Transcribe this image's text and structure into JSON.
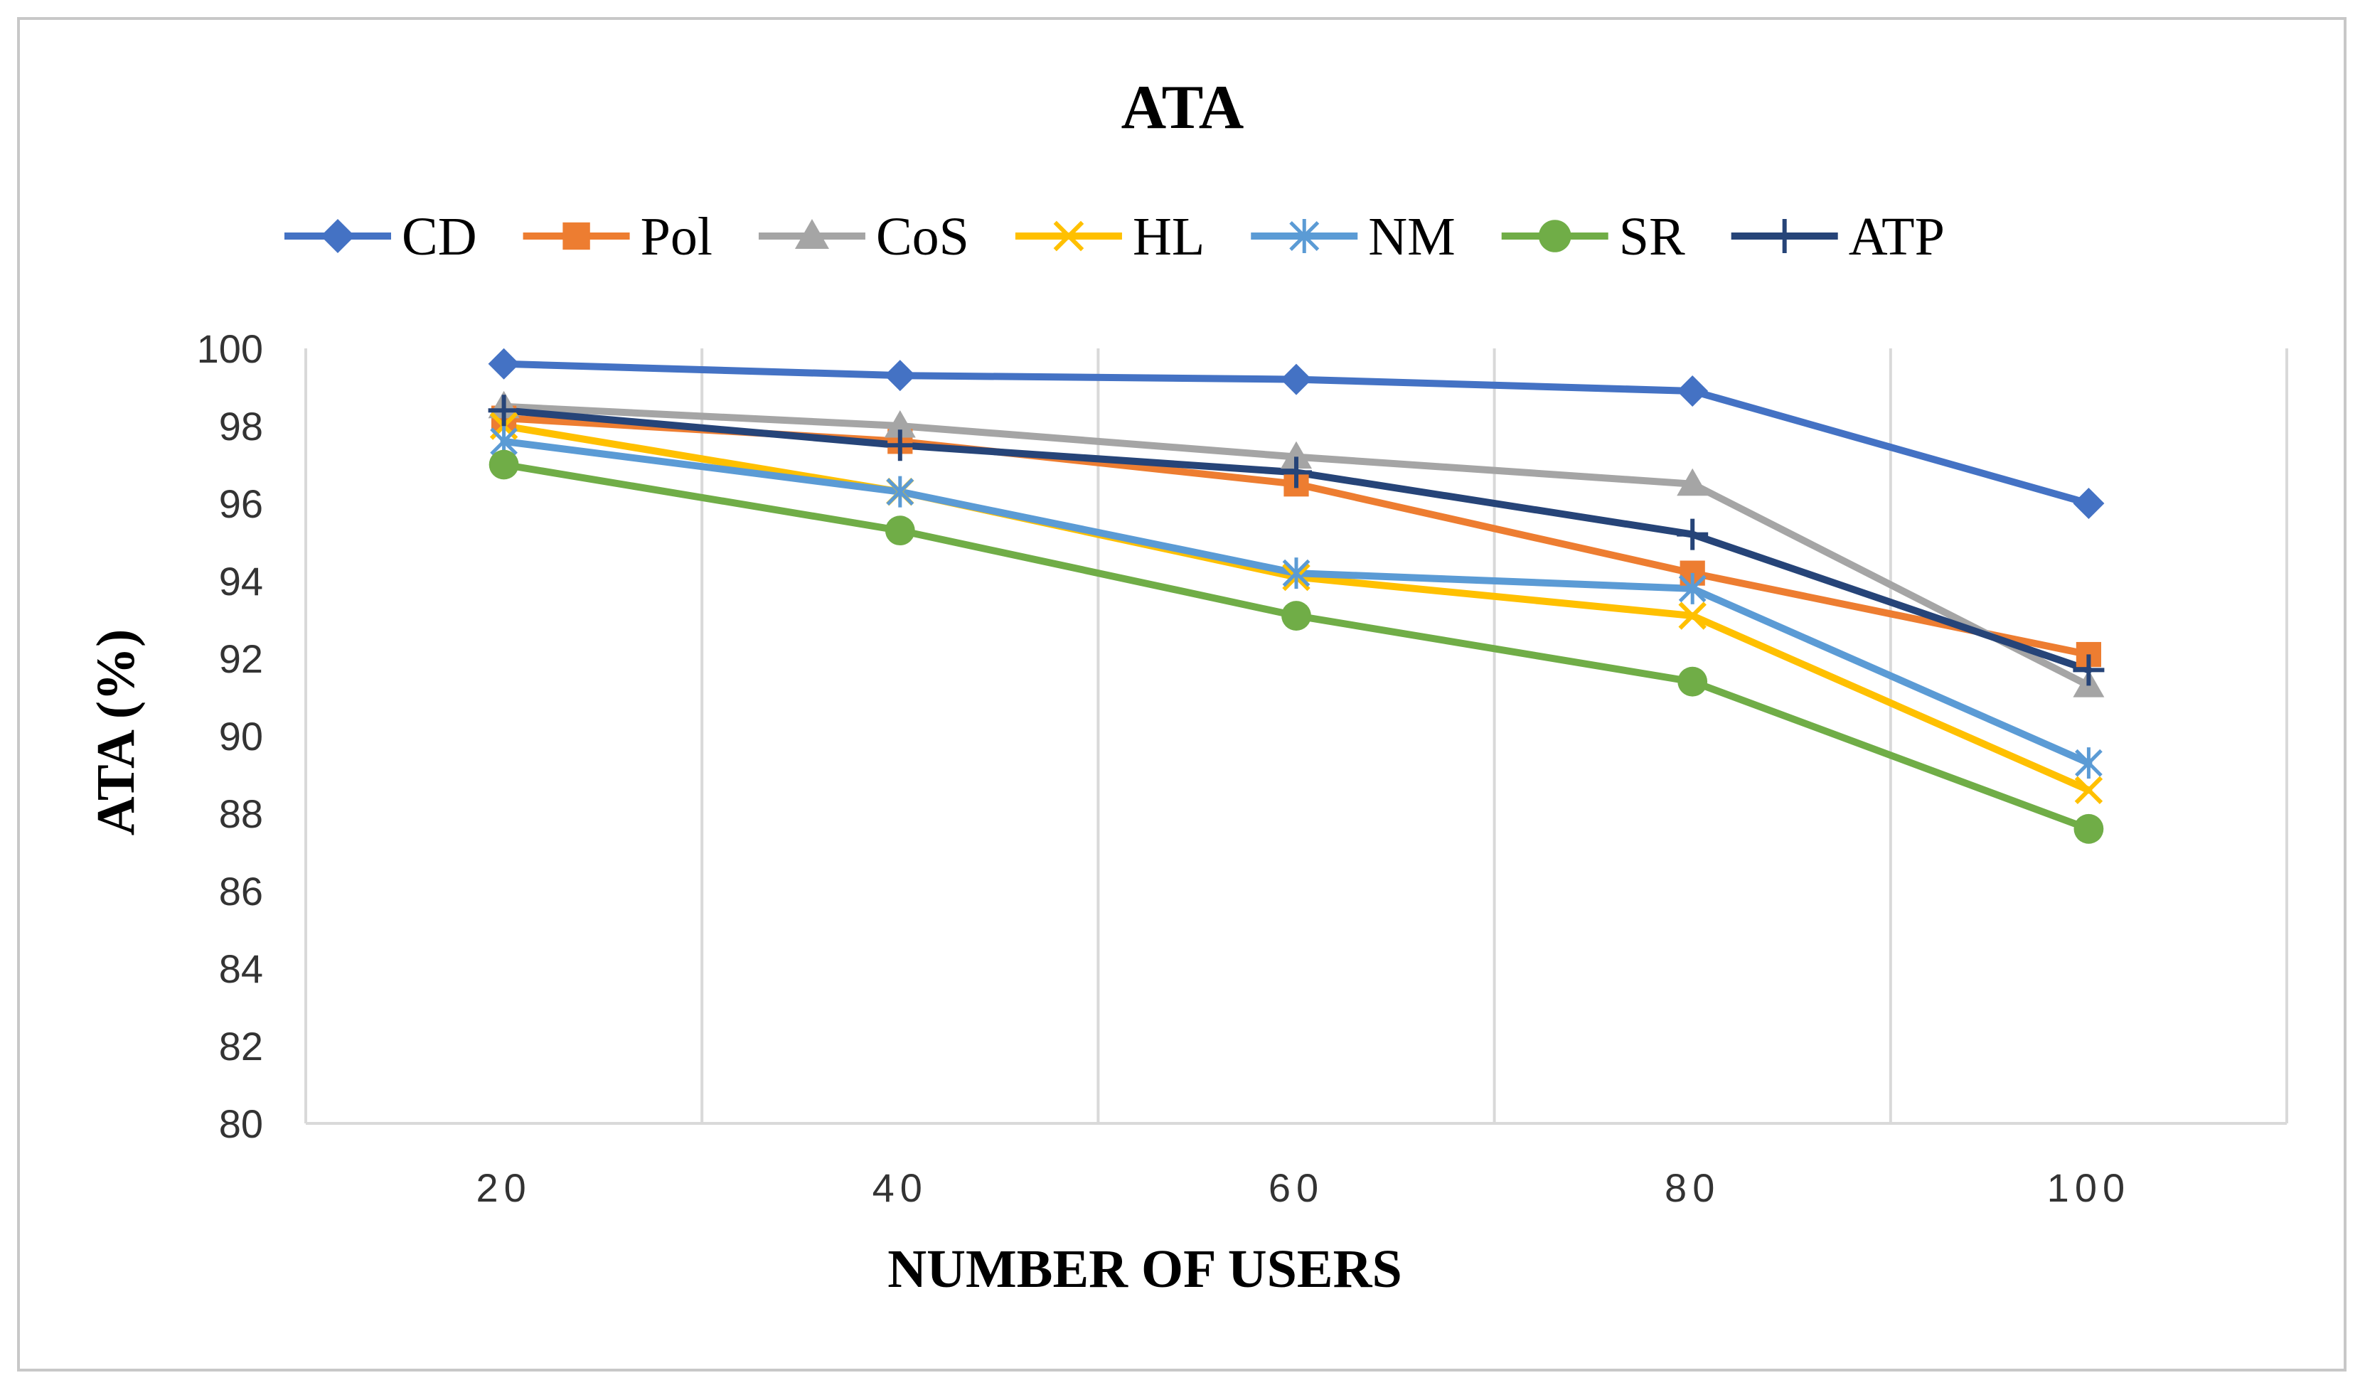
{
  "chart_data": {
    "type": "line",
    "title": "ATA",
    "xlabel": "NUMBER OF USERS",
    "ylabel": "ATA (%)",
    "categories": [
      "20",
      "40",
      "60",
      "80",
      "100"
    ],
    "ylim": [
      80,
      100
    ],
    "yticks": [
      80,
      82,
      84,
      86,
      88,
      90,
      92,
      94,
      96,
      98,
      100
    ],
    "ytick_labels": [
      "80",
      "82",
      "84",
      "86",
      "88",
      "90",
      "92",
      "94",
      "96",
      "98",
      "100"
    ],
    "grid": "vertical",
    "legend_position": "top",
    "series": [
      {
        "name": "CD",
        "values": [
          99.6,
          99.3,
          99.2,
          98.9,
          96.0
        ],
        "color": "#4472c4",
        "marker": "diamond"
      },
      {
        "name": "Pol",
        "values": [
          98.2,
          97.6,
          96.5,
          94.2,
          92.1
        ],
        "color": "#ed7d31",
        "marker": "square"
      },
      {
        "name": "CoS",
        "values": [
          98.5,
          98.0,
          97.2,
          96.5,
          91.3
        ],
        "color": "#a5a5a5",
        "marker": "triangle"
      },
      {
        "name": "HL",
        "values": [
          98.0,
          96.3,
          94.1,
          93.1,
          88.6
        ],
        "color": "#ffc000",
        "marker": "x"
      },
      {
        "name": "NM",
        "values": [
          97.6,
          96.3,
          94.2,
          93.8,
          89.3
        ],
        "color": "#5b9bd5",
        "marker": "asterisk"
      },
      {
        "name": "SR",
        "values": [
          97.0,
          95.3,
          93.1,
          91.4,
          87.6
        ],
        "color": "#70ad47",
        "marker": "circle"
      },
      {
        "name": "ATP",
        "values": [
          98.4,
          97.5,
          96.8,
          95.2,
          91.7
        ],
        "color": "#264478",
        "marker": "plus"
      }
    ]
  }
}
